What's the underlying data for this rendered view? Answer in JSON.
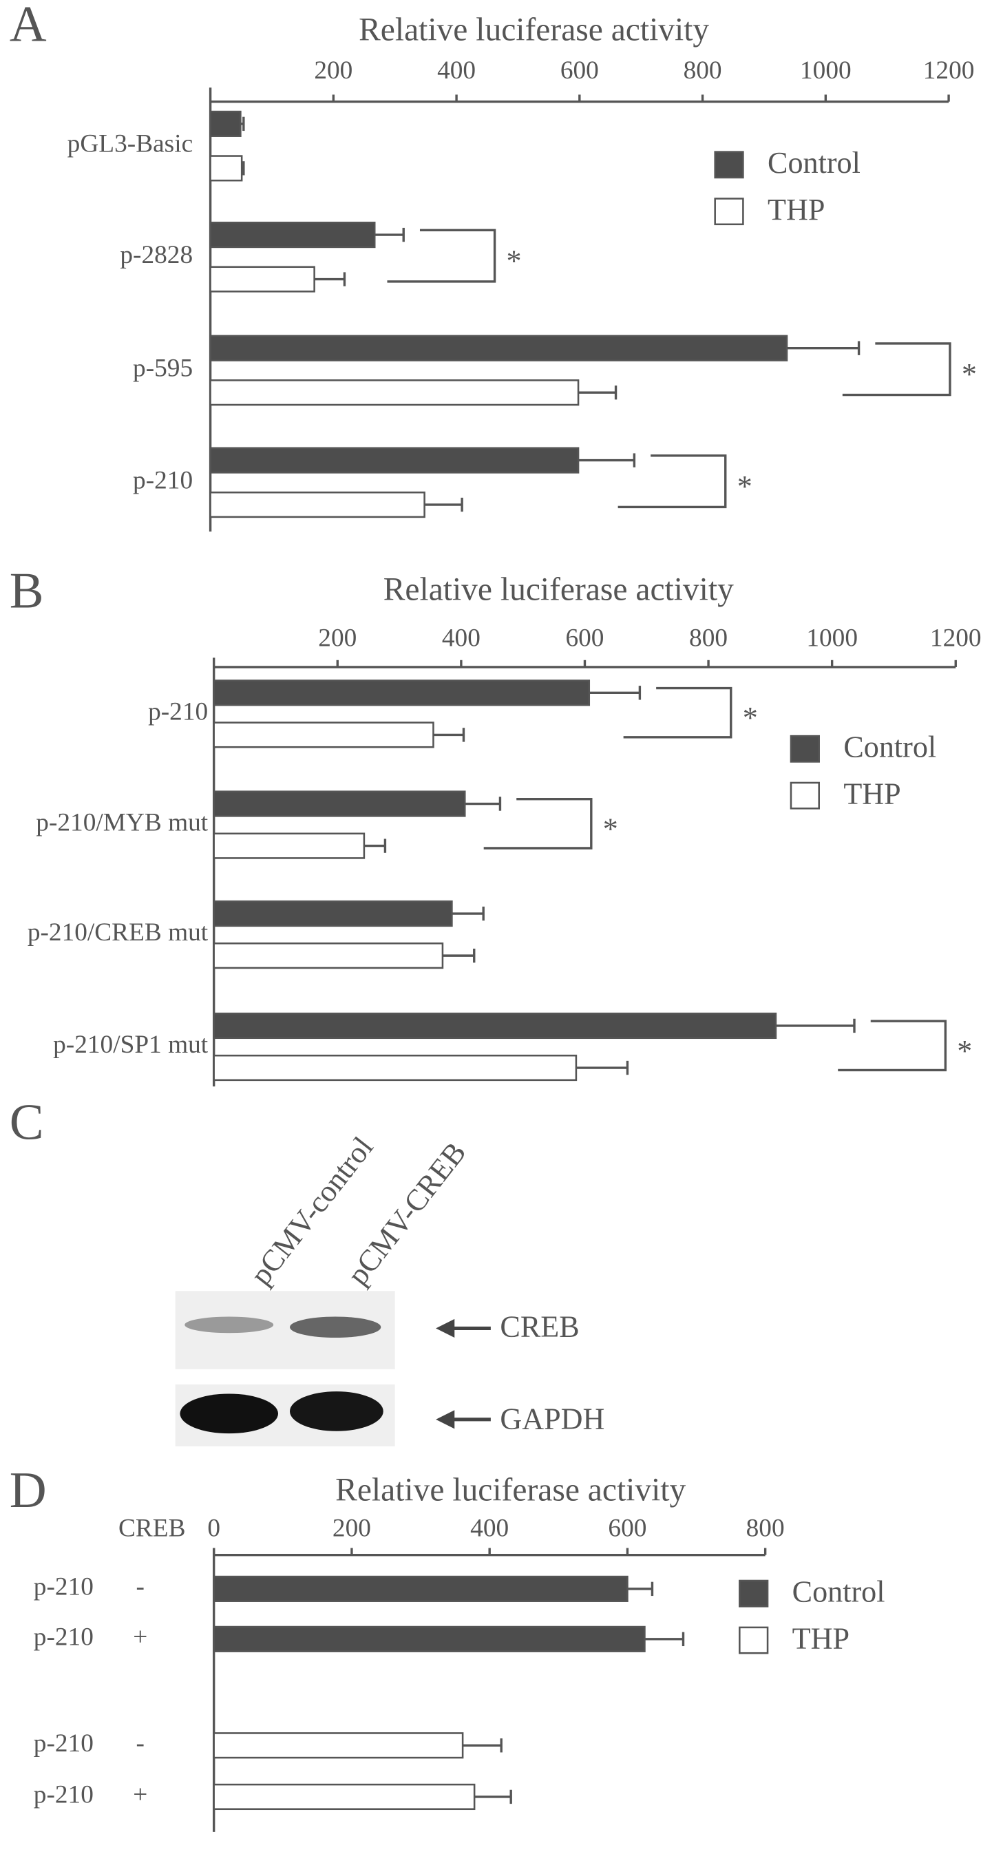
{
  "chart_data": [
    {
      "type": "bar",
      "orientation": "horizontal",
      "panel": "A",
      "title": "Relative luciferase activity",
      "categories": [
        "pGL3-Basic",
        "p-2828",
        "p-595",
        "p-210"
      ],
      "series": [
        {
          "name": "Control",
          "color": "#4d4d4d",
          "values": [
            49,
            267,
            937,
            598
          ],
          "errors": [
            5,
            47,
            117,
            91
          ]
        },
        {
          "name": "THP",
          "color": "#ffffff",
          "values": [
            51,
            169,
            598,
            348
          ],
          "errors": [
            3,
            49,
            61,
            61
          ]
        }
      ],
      "significance": [
        null,
        "*",
        "*",
        "*"
      ],
      "xlim": [
        0,
        1200
      ],
      "xticks": [
        200,
        400,
        600,
        800,
        1000,
        1200
      ]
    },
    {
      "type": "bar",
      "orientation": "horizontal",
      "panel": "B",
      "title": "Relative luciferase activity",
      "categories": [
        "p-210",
        "p-210/MYB mut",
        "p-210/CREB mut",
        "p-210/SP1 mut"
      ],
      "series": [
        {
          "name": "Control",
          "color": "#4d4d4d",
          "values": [
            607,
            406,
            385,
            909
          ],
          "errors": [
            82,
            57,
            51,
            127
          ]
        },
        {
          "name": "THP",
          "color": "#ffffff",
          "values": [
            355,
            243,
            370,
            586
          ],
          "errors": [
            49,
            34,
            51,
            83
          ]
        }
      ],
      "significance": [
        "*",
        "*",
        null,
        "*"
      ],
      "xlim": [
        0,
        1200
      ],
      "xticks": [
        200,
        400,
        600,
        800,
        1000,
        1200
      ]
    },
    {
      "type": "bar",
      "orientation": "horizontal",
      "panel": "D",
      "title": "Relative luciferase activity",
      "row_header": "CREB",
      "creb": [
        "-",
        "+",
        "-",
        "+"
      ],
      "categories": [
        "p-210",
        "p-210",
        "p-210",
        "p-210"
      ],
      "series": [
        {
          "name": "Control",
          "color": "#4d4d4d",
          "values": [
            600,
            625,
            null,
            null
          ],
          "errors": [
            36,
            56,
            null,
            null
          ]
        },
        {
          "name": "THP",
          "color": "#ffffff",
          "values": [
            null,
            null,
            361,
            378
          ],
          "errors": [
            null,
            null,
            56,
            53
          ]
        }
      ],
      "xlim": [
        0,
        800
      ],
      "xticks": [
        0,
        200,
        400,
        600,
        800
      ]
    }
  ],
  "blot": {
    "panel": "C",
    "lanes": [
      "pCMV-control",
      "pCMV-CREB"
    ],
    "bands": [
      "CREB",
      "GAPDH"
    ]
  }
}
